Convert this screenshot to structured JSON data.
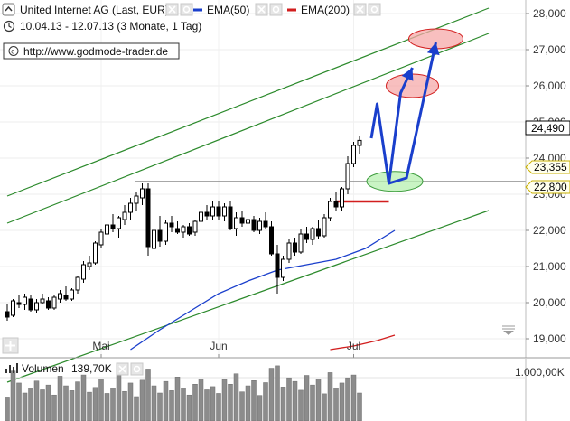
{
  "header": {
    "instrument": "United Internet AG (Last, EUR)",
    "date_range": "10.04.13 - 12.07.13 (3 Monate, 1 Tag)",
    "source_url": "http://www.godmode-trader.de"
  },
  "legend": [
    {
      "label": "EMA(50)",
      "color": "#1a3fcc"
    },
    {
      "label": "EMA(200)",
      "color": "#d21e1e"
    }
  ],
  "colors": {
    "candle_up": "#ffffff",
    "candle_down": "#000000",
    "channel": "#2c8a2c",
    "arrow": "#1a3fcc",
    "volume_bar": "#8c8c8c"
  },
  "price_labels": {
    "last": "24,490",
    "level_high": "23,355",
    "level_low": "22,800"
  },
  "volume": {
    "label": "Volumen",
    "value": "139,70K",
    "axis_label": "1.000,00K"
  },
  "icons": {
    "clock": "clock-icon",
    "info": "info-icon",
    "copyright": "copyright-icon",
    "expand": "expand-icon",
    "scroll": "scroll-handle-icon",
    "volume": "volume-bars-icon"
  },
  "chart_data": {
    "type": "candlestick",
    "title": "United Internet AG (Last, EUR)",
    "y_ticks": [
      19000,
      20000,
      21000,
      22000,
      23000,
      24000,
      25000,
      26000,
      27000,
      28000
    ],
    "y_tick_labels": [
      "19,000",
      "20,000",
      "21,000",
      "22,000",
      "23,000",
      "24,000",
      "25,000",
      "26,000",
      "27,000",
      "28,000"
    ],
    "ylim": [
      18600,
      28300
    ],
    "x_tick_labels": [
      "Mai",
      "Jun",
      "Jul"
    ],
    "x_tick_index": [
      16,
      36,
      59
    ],
    "horizontal_level": 23.355,
    "ohlc": [
      [
        19750,
        19950,
        19500,
        19600
      ],
      [
        19650,
        20100,
        19600,
        20050
      ],
      [
        20000,
        20200,
        19850,
        19950
      ],
      [
        19950,
        20250,
        19800,
        20150
      ],
      [
        20100,
        20200,
        19750,
        19800
      ],
      [
        19800,
        20100,
        19700,
        20000
      ],
      [
        20000,
        20250,
        19950,
        20100
      ],
      [
        20050,
        20150,
        19800,
        19850
      ],
      [
        19850,
        20200,
        19800,
        20150
      ],
      [
        20100,
        20350,
        20000,
        20250
      ],
      [
        20200,
        20450,
        20050,
        20100
      ],
      [
        20100,
        20400,
        20050,
        20350
      ],
      [
        20350,
        20750,
        20250,
        20700
      ],
      [
        20650,
        21150,
        20550,
        21050
      ],
      [
        21000,
        21300,
        20900,
        21100
      ],
      [
        21100,
        21700,
        21050,
        21650
      ],
      [
        21600,
        22050,
        21500,
        21950
      ],
      [
        21900,
        22250,
        21750,
        22150
      ],
      [
        22150,
        22450,
        21950,
        22050
      ],
      [
        22050,
        22400,
        21800,
        22350
      ],
      [
        22300,
        22700,
        22150,
        22500
      ],
      [
        22500,
        22900,
        22300,
        22750
      ],
      [
        22750,
        23050,
        22550,
        22950
      ],
      [
        22900,
        23300,
        22700,
        23150
      ],
      [
        23150,
        23300,
        21300,
        21550
      ],
      [
        21500,
        22200,
        21400,
        22000
      ],
      [
        22000,
        22400,
        21550,
        21700
      ],
      [
        21700,
        22300,
        21600,
        22200
      ],
      [
        22200,
        22400,
        21950,
        22100
      ],
      [
        22050,
        22250,
        21900,
        21950
      ],
      [
        21950,
        22150,
        21800,
        22100
      ],
      [
        22100,
        22200,
        21850,
        21900
      ],
      [
        21950,
        22300,
        21850,
        22250
      ],
      [
        22250,
        22600,
        22100,
        22500
      ],
      [
        22500,
        22700,
        22300,
        22400
      ],
      [
        22400,
        22800,
        22300,
        22650
      ],
      [
        22650,
        22800,
        22300,
        22400
      ],
      [
        22400,
        22750,
        22250,
        22650
      ],
      [
        22650,
        22800,
        22000,
        22050
      ],
      [
        22050,
        22500,
        21850,
        22350
      ],
      [
        22350,
        22550,
        22100,
        22200
      ],
      [
        22200,
        22450,
        22050,
        22300
      ],
      [
        22300,
        22400,
        21950,
        22000
      ],
      [
        22000,
        22350,
        21900,
        22250
      ],
      [
        22250,
        22500,
        22050,
        22100
      ],
      [
        22100,
        22250,
        21300,
        21350
      ],
      [
        21350,
        21600,
        20250,
        20700
      ],
      [
        20700,
        21300,
        20600,
        21200
      ],
      [
        21200,
        21750,
        21100,
        21650
      ],
      [
        21650,
        21800,
        21300,
        21400
      ],
      [
        21400,
        22050,
        21350,
        21900
      ],
      [
        21900,
        22100,
        21650,
        21750
      ],
      [
        21750,
        22100,
        21600,
        22050
      ],
      [
        22050,
        22300,
        21750,
        21850
      ],
      [
        21850,
        22450,
        21800,
        22350
      ],
      [
        22350,
        22900,
        22250,
        22800
      ],
      [
        22800,
        23050,
        22550,
        22650
      ],
      [
        22650,
        23200,
        22550,
        23150
      ],
      [
        23150,
        24050,
        23000,
        23850
      ],
      [
        23850,
        24450,
        23750,
        24350
      ],
      [
        24350,
        24600,
        24100,
        24490
      ]
    ],
    "ema50": [
      [
        21,
        18700
      ],
      [
        26,
        19250
      ],
      [
        31,
        19750
      ],
      [
        36,
        20250
      ],
      [
        41,
        20600
      ],
      [
        46,
        20900
      ],
      [
        51,
        21050
      ],
      [
        56,
        21200
      ],
      [
        61,
        21500
      ],
      [
        66,
        22000
      ]
    ],
    "ema200": [
      [
        55,
        18700
      ],
      [
        59,
        18800
      ],
      [
        63,
        18950
      ],
      [
        66,
        19100
      ]
    ],
    "channel_upper": [
      [
        0,
        22950
      ],
      [
        82,
        28150
      ]
    ],
    "channel_middle": [
      [
        0,
        22200
      ],
      [
        82,
        27450
      ]
    ],
    "channel_lower": [
      [
        0,
        17800
      ],
      [
        82,
        22550
      ]
    ],
    "support_line": [
      [
        56,
        22800
      ],
      [
        65,
        22800
      ]
    ],
    "arrows": [
      [
        [
          62,
          24550
        ],
        [
          63,
          25500
        ],
        [
          65,
          23300
        ],
        [
          67,
          25800
        ],
        [
          69,
          26500
        ]
      ],
      [
        [
          65,
          23300
        ],
        [
          68,
          23450
        ],
        [
          73,
          27200
        ]
      ]
    ],
    "target_zones": [
      [
        66,
        23355
      ],
      [
        69,
        26000
      ],
      [
        73,
        27300
      ]
    ],
    "volume": {
      "ylim": [
        0,
        1400
      ],
      "values": [
        600,
        1250,
        950,
        700,
        820,
        1000,
        780,
        900,
        650,
        1120,
        880,
        760,
        980,
        1150,
        720,
        840,
        1050,
        690,
        830,
        1180,
        740,
        950,
        610,
        1020,
        1300,
        880,
        700,
        990,
        760,
        1100,
        820,
        650,
        920,
        1050,
        780,
        860,
        690,
        1040,
        920,
        1180,
        730,
        880,
        1010,
        640,
        960,
        1320,
        1380,
        850,
        1080,
        990,
        770,
        1140,
        900,
        1050,
        680,
        1210,
        830,
        950,
        1080,
        1150,
        700
      ]
    }
  }
}
